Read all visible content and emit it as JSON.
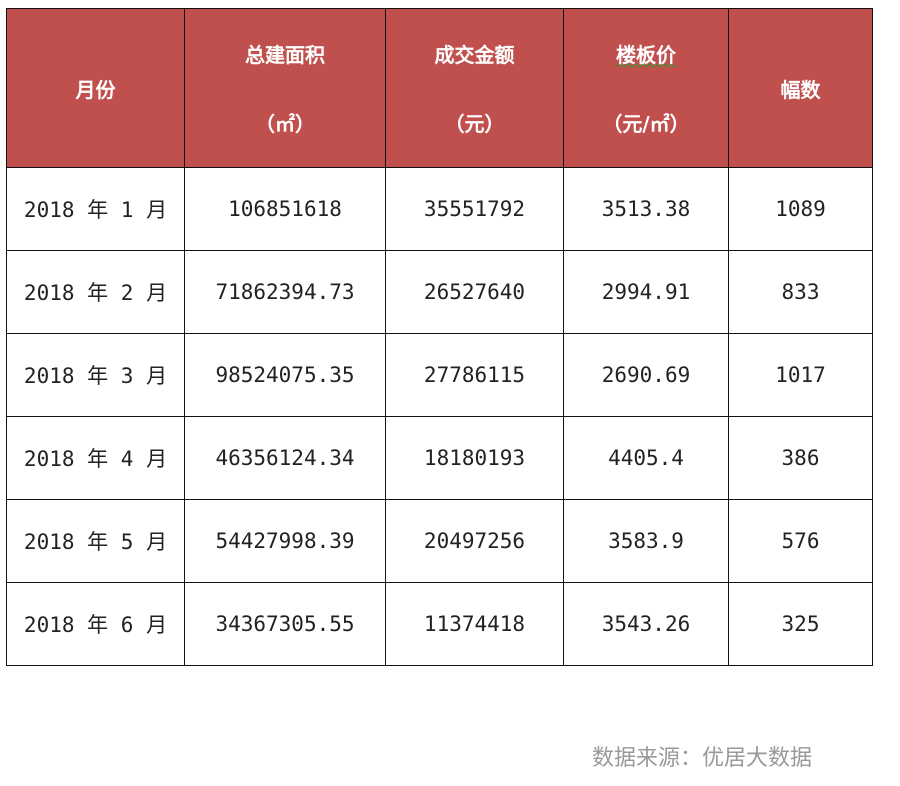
{
  "headers": [
    {
      "line1": "月份",
      "line2": ""
    },
    {
      "line1": "总建面积",
      "line2": "（㎡）"
    },
    {
      "line1": "成交金额",
      "line2": "（元）"
    },
    {
      "line1": "楼板价",
      "line2": "（元/㎡）"
    },
    {
      "line1": "幅数",
      "line2": ""
    }
  ],
  "rows": [
    [
      "2018 年 1 月",
      "106851618",
      "35551792",
      "3513.38",
      "1089"
    ],
    [
      "2018 年 2 月",
      "71862394.73",
      "26527640",
      "2994.91",
      "833"
    ],
    [
      "2018 年 3 月",
      "98524075.35",
      "27786115",
      "2690.69",
      "1017"
    ],
    [
      "2018 年 4 月",
      "46356124.34",
      "18180193",
      "4405.4",
      "386"
    ],
    [
      "2018 年 5 月",
      "54427998.39",
      "20497256",
      "3583.9",
      "576"
    ],
    [
      "2018 年 6 月",
      "34367305.55",
      "11374418",
      "3543.26",
      "325"
    ]
  ],
  "source": "数据来源：优居大数据",
  "colors": {
    "header_bg": "#c0504d",
    "header_text": "#ffffff"
  }
}
